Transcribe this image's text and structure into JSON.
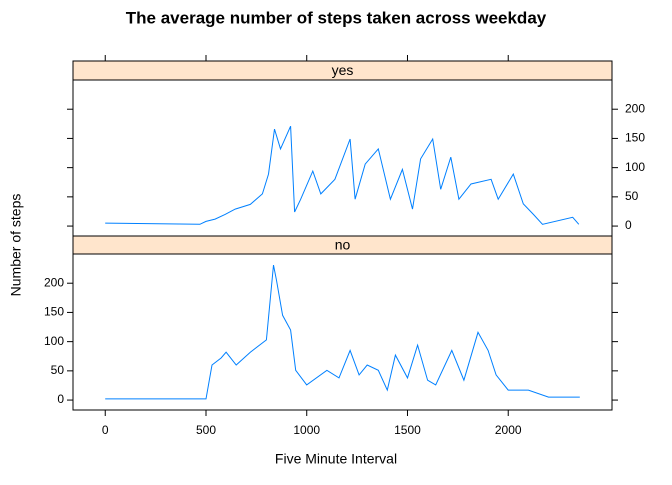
{
  "chart_data": {
    "type": "line",
    "title": "The average number of steps taken across weekday",
    "xlabel": "Five Minute Interval",
    "ylabel": "Number of steps",
    "xlim": [
      -160,
      2515
    ],
    "xticks": [
      0,
      500,
      1000,
      1500,
      2000
    ],
    "ylim": [
      -17,
      250
    ],
    "yticks": [
      0,
      50,
      100,
      150,
      200
    ],
    "series": [
      {
        "name": "yes",
        "color": "#0080ff",
        "x": [
          0,
          470,
          500,
          545,
          595,
          645,
          720,
          780,
          810,
          840,
          870,
          920,
          940,
          970,
          1030,
          1070,
          1140,
          1215,
          1240,
          1290,
          1355,
          1415,
          1475,
          1525,
          1565,
          1625,
          1665,
          1715,
          1755,
          1815,
          1915,
          1950,
          2025,
          2075,
          2125,
          2170,
          2320,
          2350
        ],
        "values": [
          5,
          3,
          8,
          12,
          20,
          29,
          37,
          55,
          89,
          166,
          132,
          171,
          24,
          46,
          94,
          55,
          80,
          149,
          46,
          106,
          132,
          46,
          97,
          29,
          115,
          149,
          63,
          118,
          46,
          72,
          80,
          46,
          89,
          38,
          20,
          3,
          15,
          3
        ]
      },
      {
        "name": "no",
        "color": "#0080ff",
        "x": [
          0,
          500,
          530,
          575,
          600,
          650,
          720,
          800,
          835,
          850,
          880,
          920,
          945,
          1000,
          1100,
          1160,
          1215,
          1260,
          1300,
          1355,
          1400,
          1440,
          1500,
          1550,
          1600,
          1640,
          1720,
          1780,
          1850,
          1900,
          1940,
          2000,
          2100,
          2200,
          2355
        ],
        "values": [
          2,
          2,
          60,
          72,
          82,
          60,
          82,
          103,
          231,
          205,
          145,
          120,
          51,
          26,
          51,
          38,
          85,
          43,
          60,
          51,
          17,
          77,
          38,
          94,
          34,
          26,
          85,
          34,
          116,
          85,
          43,
          17,
          17,
          5,
          5
        ]
      }
    ]
  }
}
